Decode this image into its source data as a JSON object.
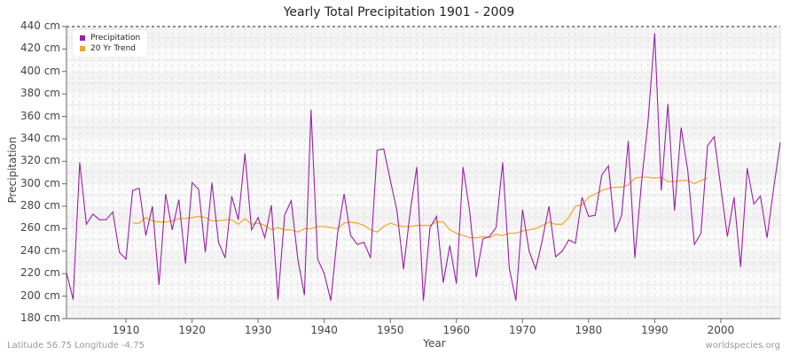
{
  "chart_data": {
    "type": "line",
    "title": "Yearly Total Precipitation 1901 - 2009",
    "xlabel": "Year",
    "ylabel": "Precipitation",
    "ylim": [
      180,
      440
    ],
    "xlim": [
      1901,
      2009
    ],
    "yticks": [
      "180 cm",
      "200 cm",
      "220 cm",
      "240 cm",
      "260 cm",
      "280 cm",
      "300 cm",
      "320 cm",
      "340 cm",
      "360 cm",
      "380 cm",
      "400 cm",
      "420 cm",
      "440 cm"
    ],
    "xticks": [
      "1910",
      "1920",
      "1930",
      "1940",
      "1950",
      "1960",
      "1970",
      "1980",
      "1990",
      "2000"
    ],
    "grid": true,
    "legend_position": "top-left",
    "series": [
      {
        "name": "Precipitation",
        "color": "#9b1fa8",
        "x_start": 1901,
        "values": [
          221,
          197,
          319,
          264,
          273,
          268,
          268,
          275,
          239,
          233,
          294,
          296,
          254,
          280,
          210,
          291,
          259,
          286,
          229,
          301,
          295,
          239,
          301,
          248,
          234,
          289,
          268,
          327,
          259,
          270,
          252,
          281,
          197,
          272,
          285,
          233,
          201,
          366,
          233,
          220,
          196,
          255,
          291,
          254,
          246,
          248,
          234,
          330,
          331,
          303,
          276,
          224,
          275,
          315,
          196,
          261,
          271,
          212,
          245,
          211,
          315,
          276,
          217,
          251,
          253,
          261,
          319,
          225,
          196,
          277,
          240,
          224,
          250,
          280,
          235,
          240,
          250,
          247,
          288,
          271,
          272,
          308,
          316,
          257,
          272,
          338,
          234,
          301,
          356,
          434,
          294,
          371,
          276,
          350,
          312,
          246,
          256,
          334,
          342,
          297,
          253,
          288,
          226,
          314,
          282,
          289,
          252,
          296,
          337
        ]
      },
      {
        "name": "20 Yr Trend",
        "color": "#f5a623",
        "x_start": 1911,
        "values": [
          265,
          265,
          270,
          267,
          266,
          266,
          267,
          269,
          269,
          270,
          271,
          270,
          267,
          267,
          268,
          268,
          264,
          269,
          264,
          265,
          263,
          259,
          261,
          259,
          259,
          257,
          260,
          260,
          262,
          262,
          261,
          260,
          265,
          266,
          265,
          263,
          259,
          257,
          262,
          265,
          263,
          262,
          262,
          263,
          263,
          263,
          266,
          266,
          259,
          256,
          254,
          252,
          252,
          253,
          252,
          255,
          254,
          256,
          256,
          258,
          259,
          260,
          263,
          266,
          264,
          264,
          270,
          280,
          281,
          288,
          291,
          294,
          296,
          297,
          297,
          299,
          305,
          306,
          306,
          305,
          306,
          302,
          302,
          303,
          303,
          300,
          303,
          305
        ]
      }
    ]
  },
  "footer": {
    "left": "Latitude 56.75 Longitude -4.75",
    "right": "worldspecies.org"
  }
}
